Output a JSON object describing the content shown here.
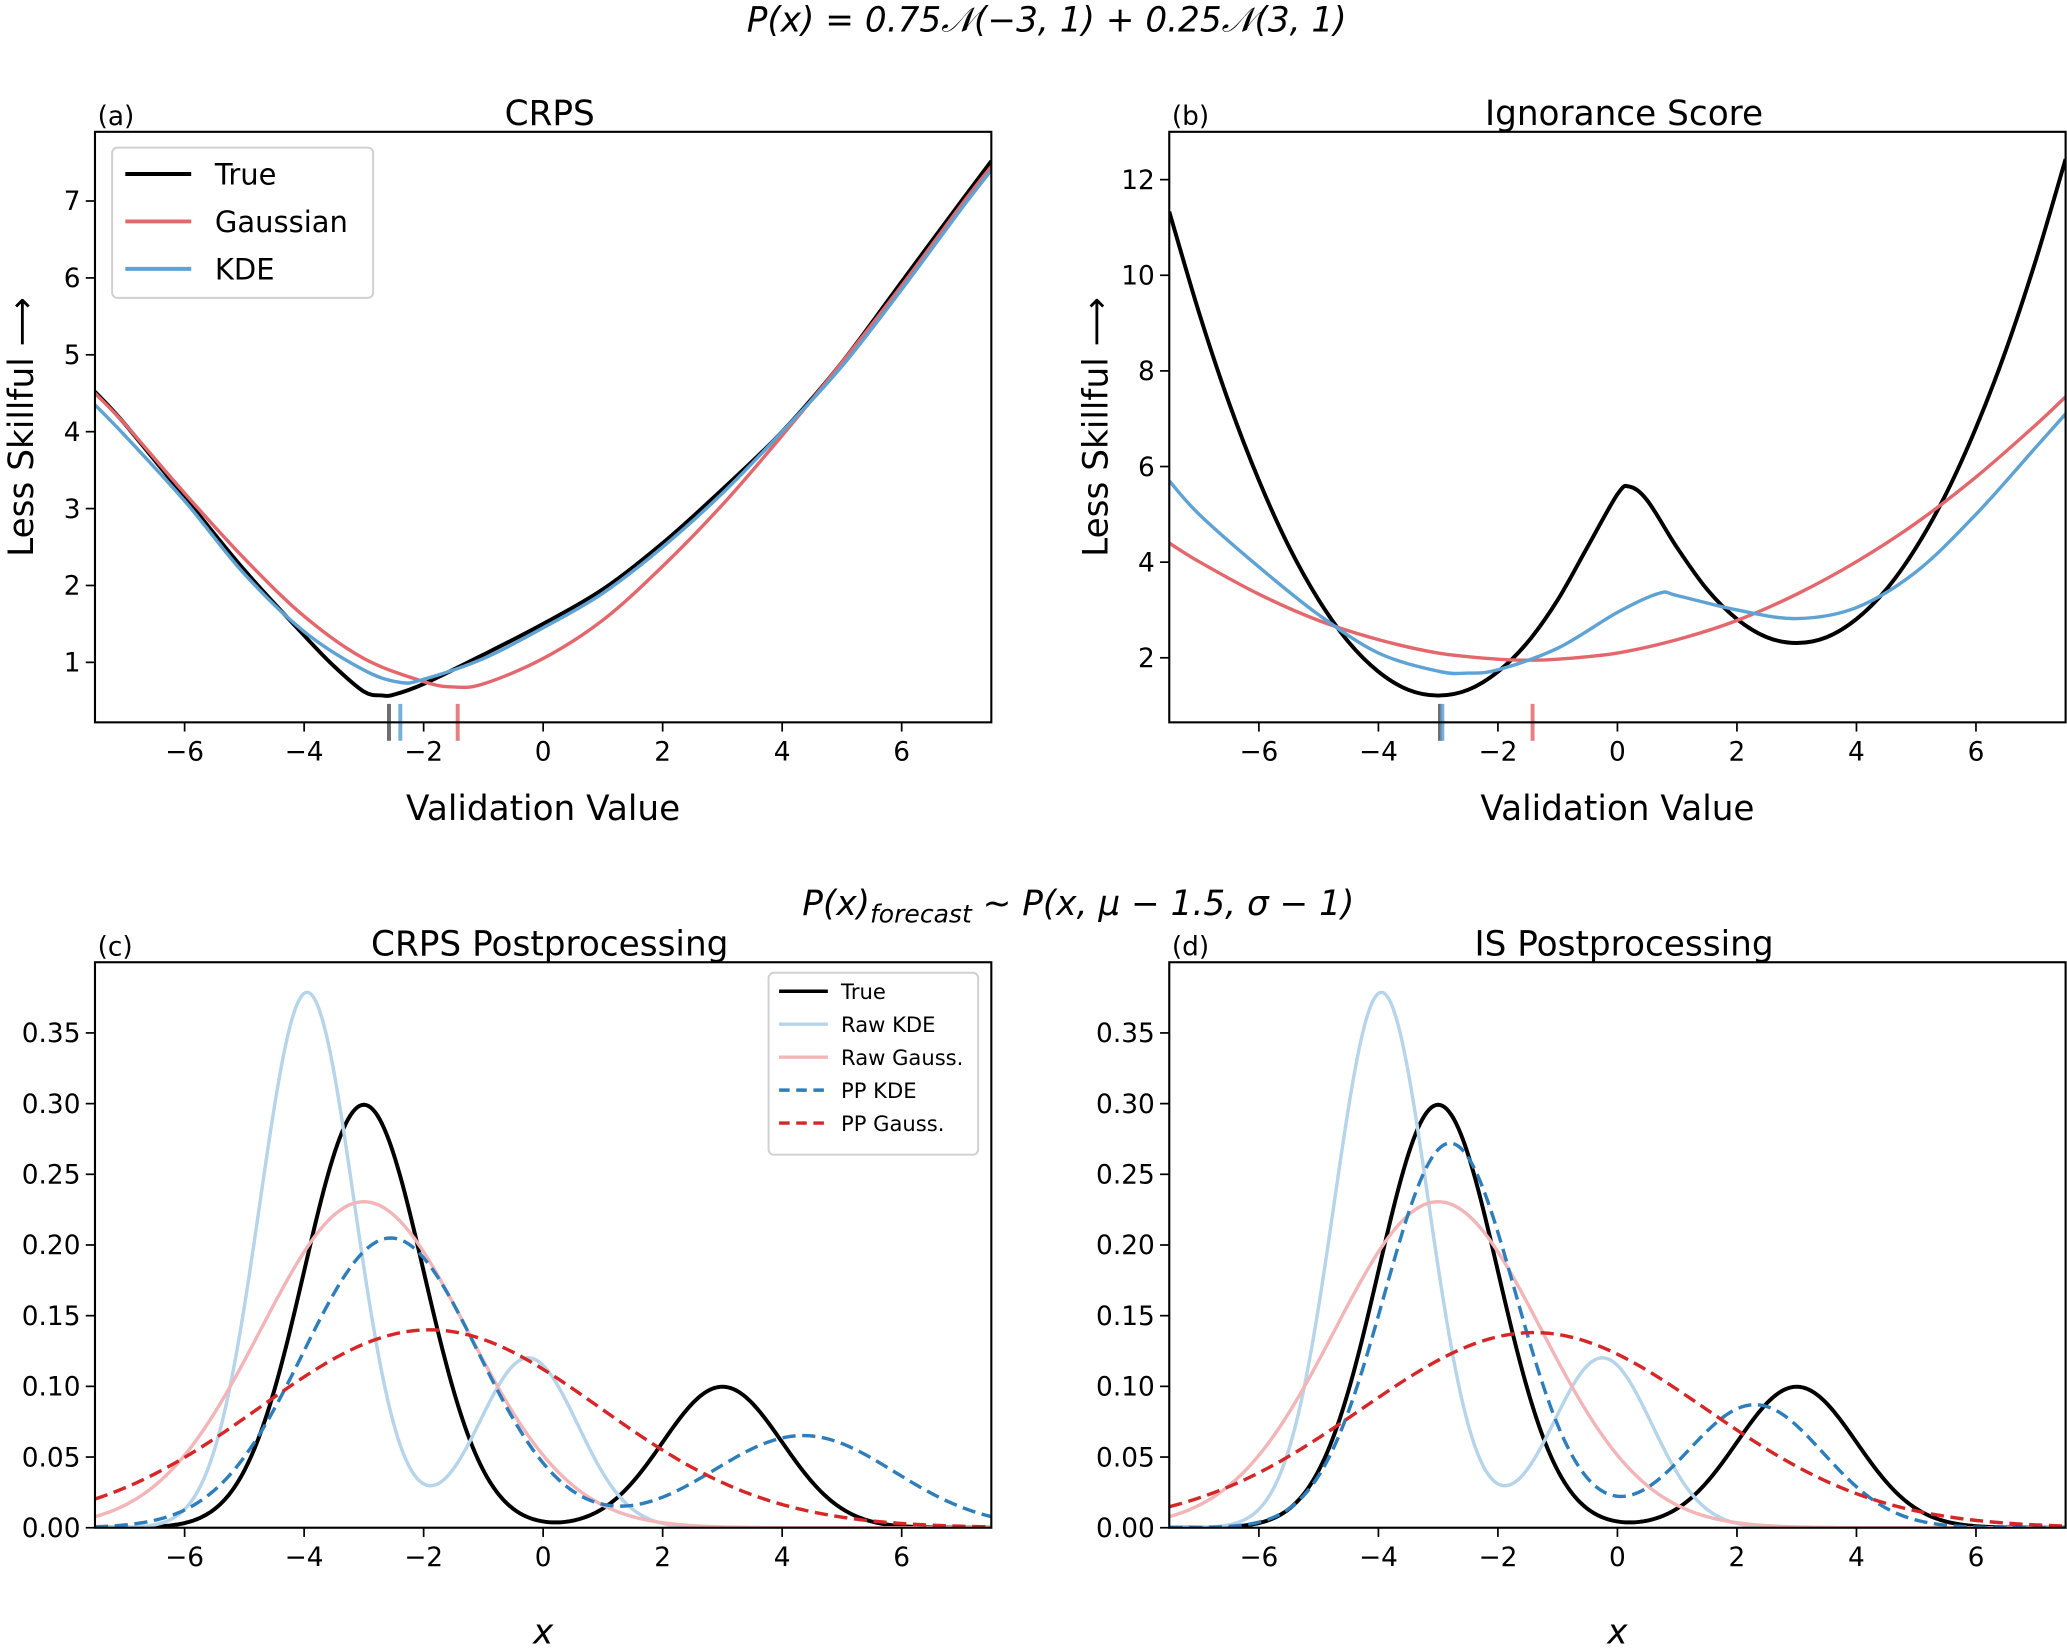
{
  "suptitle_top": "P(x) = 0.75𝒩(−3, 1) + 0.25𝒩(3, 1)",
  "suptitle_bottom": {
    "main": "P(x)",
    "sub": "forecast",
    "rest": " ~ P(x, μ − 1.5, σ − 1)"
  },
  "chart_data": [
    {
      "panel_label": "(a)",
      "title": "CRPS",
      "type": "line",
      "xlabel": "Validation Value",
      "ylabel": "Less Skillful ⟶",
      "xlim": [
        -7.5,
        7.5
      ],
      "ylim": [
        0.22,
        7.9
      ],
      "xticks": [
        -6,
        -4,
        -2,
        0,
        2,
        4,
        6
      ],
      "xtick_labels": [
        "−6",
        "−4",
        "−2",
        "0",
        "2",
        "4",
        "6"
      ],
      "yticks": [
        1,
        2,
        3,
        4,
        5,
        6,
        7
      ],
      "ytick_labels": [
        "1",
        "2",
        "3",
        "4",
        "5",
        "6",
        "7"
      ],
      "legend": "upper-left",
      "grid": false,
      "series": [
        {
          "name": "True",
          "color": "#000000",
          "x": [
            -7.5,
            -7,
            -6,
            -5,
            -4,
            -3.5,
            -3,
            -2.7,
            -2.5,
            -2,
            -1,
            0,
            1,
            2,
            3,
            4,
            5,
            6,
            7,
            7.5
          ],
          "y": [
            4.52,
            4.1,
            3.15,
            2.2,
            1.35,
            0.95,
            0.62,
            0.57,
            0.58,
            0.72,
            1.1,
            1.5,
            1.95,
            2.55,
            3.25,
            4.0,
            4.9,
            5.95,
            7.0,
            7.52
          ]
        },
        {
          "name": "Gaussian",
          "color": "#e3686d",
          "x": [
            -7.5,
            -7,
            -6,
            -5,
            -4,
            -3,
            -2,
            -1.5,
            -1,
            0,
            1,
            2,
            3,
            4,
            5,
            6,
            7,
            7.5
          ],
          "y": [
            4.5,
            4.1,
            3.2,
            2.35,
            1.6,
            1.05,
            0.75,
            0.68,
            0.72,
            1.05,
            1.55,
            2.25,
            3.05,
            3.95,
            4.9,
            5.9,
            6.95,
            7.45
          ]
        },
        {
          "name": "KDE",
          "color": "#5fa2d4",
          "x": [
            -7.5,
            -7,
            -6,
            -5,
            -4,
            -3,
            -2.4,
            -2,
            -1,
            0,
            1,
            2,
            3,
            4,
            5,
            6,
            7,
            7.5
          ],
          "y": [
            4.35,
            3.95,
            3.1,
            2.15,
            1.4,
            0.9,
            0.74,
            0.78,
            1.05,
            1.45,
            1.9,
            2.5,
            3.2,
            4.0,
            4.85,
            5.85,
            6.9,
            7.4
          ]
        }
      ],
      "minima": [
        {
          "series": "True",
          "x": -2.58,
          "color": "#555555"
        },
        {
          "series": "KDE",
          "x": -2.39,
          "color": "#5fa2d4"
        },
        {
          "series": "Gaussian",
          "x": -1.43,
          "color": "#e3686d"
        }
      ]
    },
    {
      "panel_label": "(b)",
      "title": "Ignorance Score",
      "type": "line",
      "xlabel": "Validation Value",
      "ylabel": "Less Skillful ⟶",
      "xlim": [
        -7.5,
        7.5
      ],
      "ylim": [
        0.65,
        13.0
      ],
      "xticks": [
        -6,
        -4,
        -2,
        0,
        2,
        4,
        6
      ],
      "xtick_labels": [
        "−6",
        "−4",
        "−2",
        "0",
        "2",
        "4",
        "6"
      ],
      "yticks": [
        2,
        4,
        6,
        8,
        10,
        12
      ],
      "ytick_labels": [
        "2",
        "4",
        "6",
        "8",
        "10",
        "12"
      ],
      "grid": false,
      "series": [
        {
          "name": "True",
          "color": "#000000",
          "x": [
            -7.5,
            -7,
            -6.5,
            -6,
            -5.5,
            -5,
            -4.5,
            -4,
            -3.5,
            -3,
            -2.5,
            -2,
            -1.5,
            -1,
            -0.5,
            0,
            0.2,
            0.5,
            1,
            1.5,
            2,
            2.5,
            3,
            3.5,
            4,
            4.5,
            5,
            5.5,
            6,
            6.5,
            7,
            7.5
          ],
          "y": [
            11.33,
            9.21,
            7.33,
            5.71,
            4.33,
            3.21,
            2.33,
            1.71,
            1.33,
            1.21,
            1.33,
            1.71,
            2.33,
            3.21,
            4.32,
            5.42,
            5.58,
            5.29,
            4.3,
            3.43,
            2.81,
            2.43,
            2.31,
            2.43,
            2.81,
            3.43,
            4.31,
            5.43,
            6.81,
            8.43,
            10.31,
            12.43
          ]
        },
        {
          "name": "Gaussian",
          "color": "#e3686d",
          "x": [
            -7.5,
            -7,
            -6,
            -5,
            -4,
            -3,
            -2,
            -1.5,
            -1,
            0,
            1,
            2,
            3,
            4,
            5,
            6,
            7,
            7.5
          ],
          "y": [
            4.4,
            4.01,
            3.33,
            2.78,
            2.38,
            2.1,
            1.97,
            1.95,
            1.97,
            2.1,
            2.38,
            2.78,
            3.33,
            4.01,
            4.82,
            5.78,
            6.87,
            7.46
          ]
        },
        {
          "name": "KDE",
          "color": "#5fa2d4",
          "x": [
            -7.5,
            -7,
            -6,
            -5,
            -4,
            -3,
            -2.5,
            -2,
            -1,
            0,
            0.7,
            1,
            2,
            3,
            4,
            5,
            6,
            7,
            7.5
          ],
          "y": [
            5.7,
            5.0,
            3.9,
            2.9,
            2.1,
            1.72,
            1.68,
            1.75,
            2.2,
            2.95,
            3.35,
            3.3,
            3.0,
            2.82,
            3.05,
            3.8,
            5.0,
            6.4,
            7.1
          ]
        }
      ],
      "minima": [
        {
          "series": "True",
          "x": -2.97,
          "color": "#555555"
        },
        {
          "series": "KDE",
          "x": -2.93,
          "color": "#5fa2d4"
        },
        {
          "series": "Gaussian",
          "x": -1.42,
          "color": "#e3686d"
        }
      ]
    },
    {
      "panel_label": "(c)",
      "title": "CRPS Postprocessing",
      "type": "line",
      "xlabel": "x",
      "ylabel": "",
      "xlim": [
        -7.5,
        7.5
      ],
      "ylim": [
        0,
        0.4
      ],
      "xticks": [
        -6,
        -4,
        -2,
        0,
        2,
        4,
        6
      ],
      "xtick_labels": [
        "−6",
        "−4",
        "−2",
        "0",
        "2",
        "4",
        "6"
      ],
      "yticks": [
        0,
        0.05,
        0.1,
        0.15,
        0.2,
        0.25,
        0.3,
        0.35
      ],
      "ytick_labels": [
        "0.00",
        "0.05",
        "0.10",
        "0.15",
        "0.20",
        "0.25",
        "0.30",
        "0.35"
      ],
      "legend": "upper-right",
      "grid": false,
      "series": [
        {
          "name": "True",
          "color": "#000000",
          "dashed": false,
          "mixture": [
            {
              "weight": 0.75,
              "mean": -3,
              "sigma": 1
            },
            {
              "weight": 0.25,
              "mean": 3,
              "sigma": 1
            }
          ]
        },
        {
          "name": "Raw KDE",
          "color": "#b6d4ea",
          "dashed": false,
          "mixture": [
            {
              "weight": 0.75,
              "mean": -3.95,
              "sigma": 0.79
            },
            {
              "weight": 0.25,
              "mean": -0.25,
              "sigma": 0.83
            }
          ]
        },
        {
          "name": "Raw Gauss.",
          "color": "#f2b6b8",
          "dashed": false,
          "mixture": [
            {
              "weight": 1,
              "mean": -3,
              "sigma": 1.73
            }
          ]
        },
        {
          "name": "PP KDE",
          "color": "#2e7ebc",
          "dashed": true,
          "mixture": [
            {
              "weight": 0.75,
              "mean": -2.55,
              "sigma": 1.46
            },
            {
              "weight": 0.25,
              "mean": 4.35,
              "sigma": 1.53
            }
          ]
        },
        {
          "name": "PP Gauss.",
          "color": "#d62728",
          "dashed": true,
          "mixture": [
            {
              "weight": 1,
              "mean": -1.9,
              "sigma": 2.85
            }
          ]
        }
      ]
    },
    {
      "panel_label": "(d)",
      "title": "IS Postprocessing",
      "type": "line",
      "xlabel": "x",
      "ylabel": "",
      "xlim": [
        -7.5,
        7.5
      ],
      "ylim": [
        0,
        0.4
      ],
      "xticks": [
        -6,
        -4,
        -2,
        0,
        2,
        4,
        6
      ],
      "xtick_labels": [
        "−6",
        "−4",
        "−2",
        "0",
        "2",
        "4",
        "6"
      ],
      "yticks": [
        0,
        0.05,
        0.1,
        0.15,
        0.2,
        0.25,
        0.3,
        0.35
      ],
      "ytick_labels": [
        "0.00",
        "0.05",
        "0.10",
        "0.15",
        "0.20",
        "0.25",
        "0.30",
        "0.35"
      ],
      "grid": false,
      "series": [
        {
          "name": "True",
          "color": "#000000",
          "dashed": false,
          "mixture": [
            {
              "weight": 0.75,
              "mean": -3,
              "sigma": 1
            },
            {
              "weight": 0.25,
              "mean": 3,
              "sigma": 1
            }
          ]
        },
        {
          "name": "Raw KDE",
          "color": "#b6d4ea",
          "dashed": false,
          "mixture": [
            {
              "weight": 0.75,
              "mean": -3.95,
              "sigma": 0.79
            },
            {
              "weight": 0.25,
              "mean": -0.25,
              "sigma": 0.83
            }
          ]
        },
        {
          "name": "Raw Gauss.",
          "color": "#f2b6b8",
          "dashed": false,
          "mixture": [
            {
              "weight": 1,
              "mean": -3,
              "sigma": 1.73
            }
          ]
        },
        {
          "name": "PP KDE",
          "color": "#2e7ebc",
          "dashed": true,
          "mixture": [
            {
              "weight": 0.75,
              "mean": -2.8,
              "sigma": 1.1
            },
            {
              "weight": 0.25,
              "mean": 2.3,
              "sigma": 1.146
            }
          ]
        },
        {
          "name": "PP Gauss.",
          "color": "#d62728",
          "dashed": true,
          "mixture": [
            {
              "weight": 1,
              "mean": -1.4,
              "sigma": 2.89
            }
          ]
        }
      ]
    }
  ]
}
